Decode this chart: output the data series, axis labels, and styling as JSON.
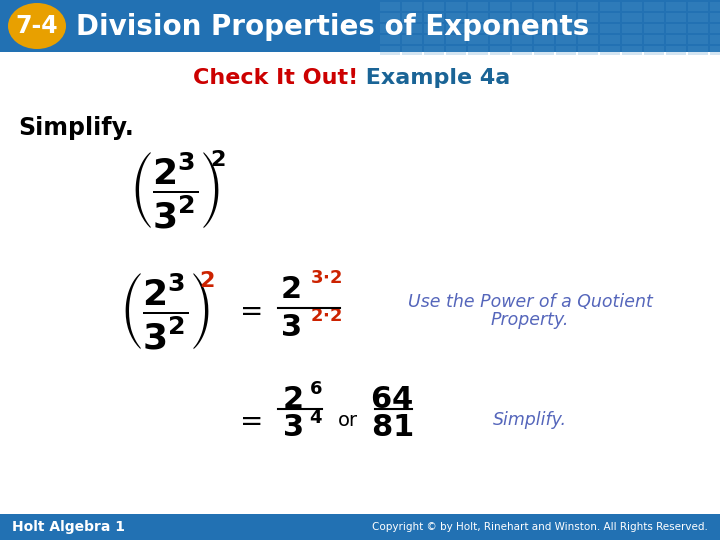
{
  "header_bg_color": "#2271b3",
  "header_text": "Division Properties of Exponents",
  "header_badge_text": "7-4",
  "header_badge_bg": "#e8a000",
  "title_red": "Check It Out!",
  "title_blue": " Example 4a",
  "title_red_color": "#cc0000",
  "title_blue_color": "#1a6496",
  "simplify_label": "Simplify.",
  "body_bg": "#ffffff",
  "footer_bg": "#2271b3",
  "footer_left": "Holt Algebra 1",
  "footer_right": "Copyright © by Holt, Rinehart and Winston. All Rights Reserved.",
  "annotation1_line1": "Use the Power of a Quotient",
  "annotation1_line2": "Property.",
  "annotation2": "Simplify.",
  "annotation_color": "#5566bb",
  "black": "#000000",
  "red_color": "#cc2200"
}
